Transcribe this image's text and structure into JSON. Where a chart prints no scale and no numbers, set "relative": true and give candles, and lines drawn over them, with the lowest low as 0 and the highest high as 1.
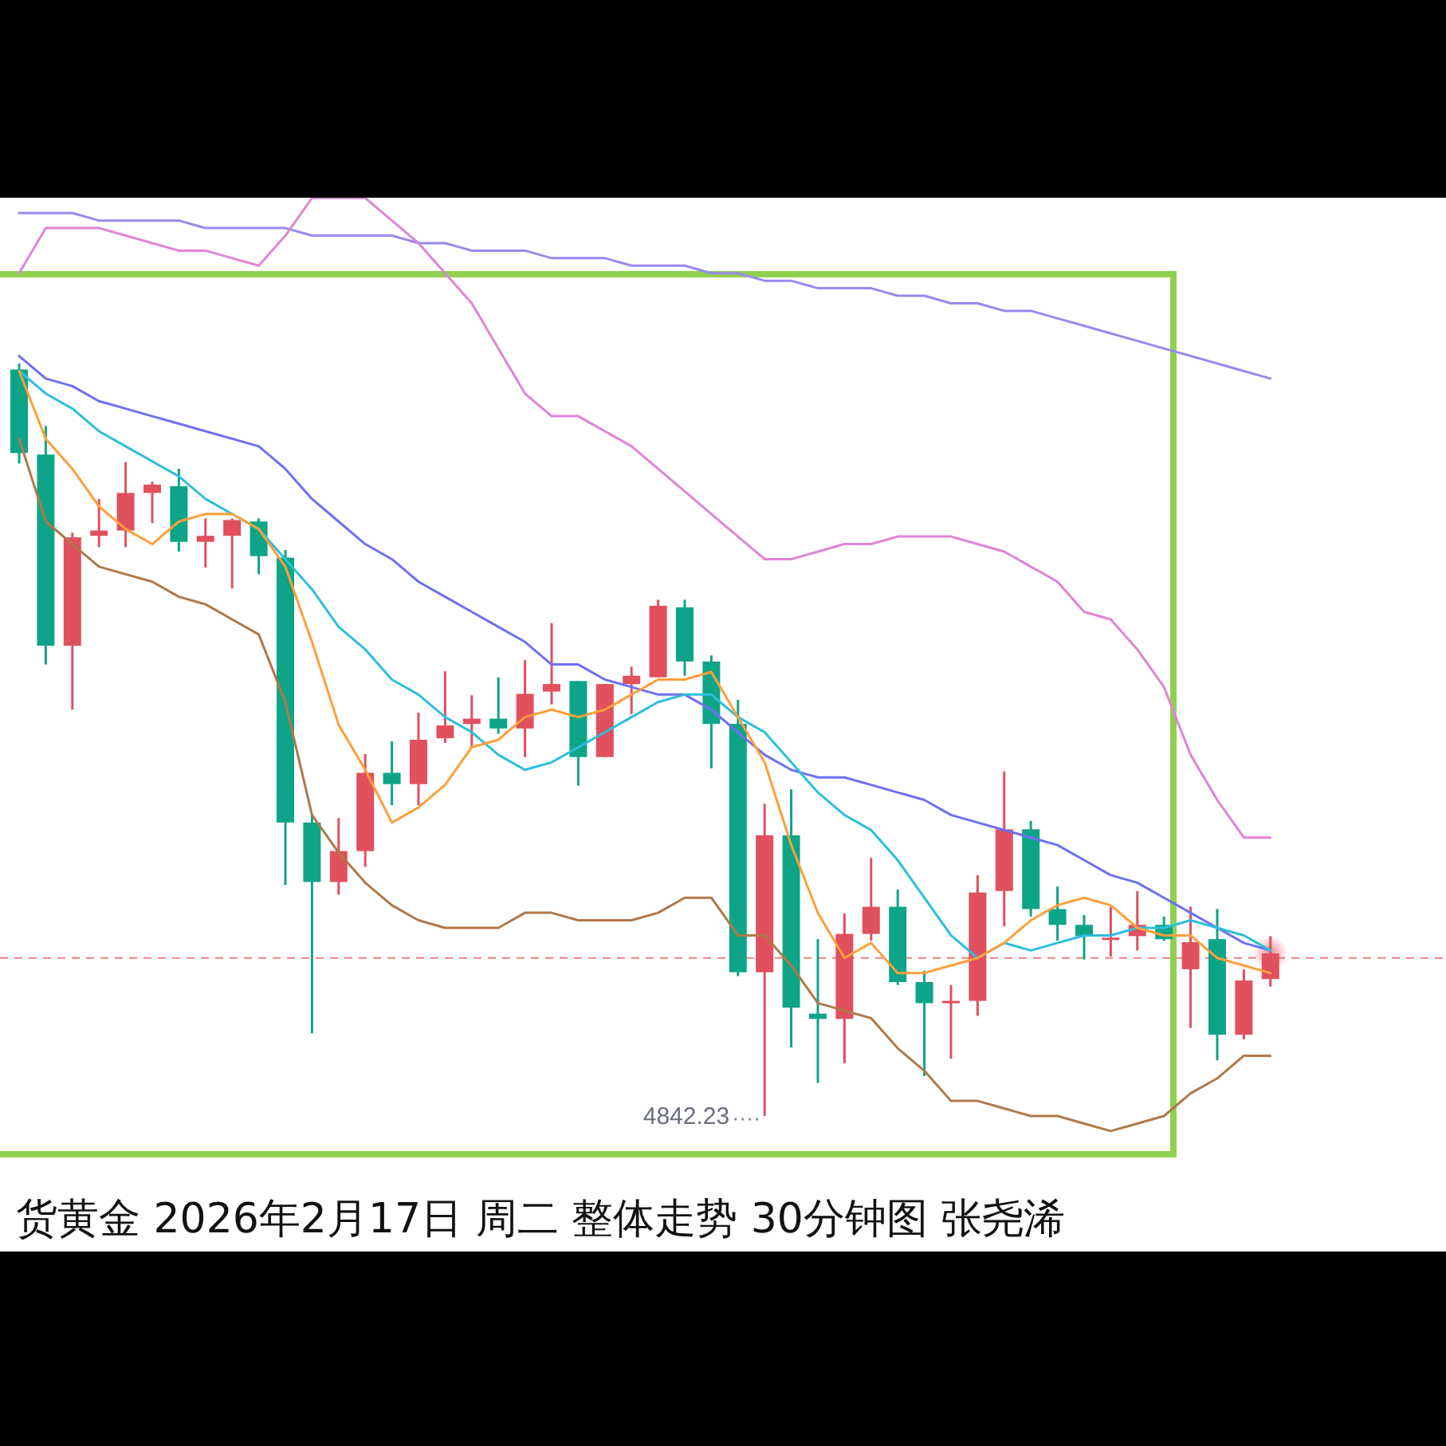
{
  "chart_data": {
    "type": "candlestick",
    "title": "货黄金 2026年2月17日 周二 整体走势 30分钟图 张尧浠",
    "relative": true,
    "categories": [
      null,
      null,
      null,
      null,
      null,
      null,
      null,
      null,
      null,
      null,
      null,
      null,
      null,
      null,
      null,
      null,
      null,
      null,
      null,
      null,
      null,
      null,
      null,
      null,
      null,
      null,
      null,
      null,
      null,
      null,
      null,
      null,
      null,
      null,
      null,
      null,
      null,
      null,
      null,
      null,
      null,
      null,
      null,
      null,
      null,
      null,
      null,
      null
    ],
    "ohlc": [
      [
        0.992,
        1.0,
        0.867,
        0.881
      ],
      [
        0.879,
        0.917,
        0.6,
        0.625
      ],
      [
        0.625,
        0.775,
        0.54,
        0.769
      ],
      [
        0.771,
        0.82,
        0.756,
        0.778
      ],
      [
        0.778,
        0.869,
        0.756,
        0.828
      ],
      [
        0.828,
        0.843,
        0.788,
        0.839
      ],
      [
        0.837,
        0.86,
        0.75,
        0.763
      ],
      [
        0.763,
        0.794,
        0.729,
        0.771
      ],
      [
        0.771,
        0.794,
        0.701,
        0.792
      ],
      [
        0.79,
        0.794,
        0.72,
        0.744
      ],
      [
        0.742,
        0.752,
        0.307,
        0.39
      ],
      [
        0.39,
        0.4,
        0.11,
        0.311
      ],
      [
        0.311,
        0.396,
        0.294,
        0.352
      ],
      [
        0.352,
        0.481,
        0.331,
        0.456
      ],
      [
        0.456,
        0.498,
        0.413,
        0.441
      ],
      [
        0.441,
        0.536,
        0.413,
        0.5
      ],
      [
        0.502,
        0.591,
        0.496,
        0.519
      ],
      [
        0.521,
        0.559,
        0.489,
        0.528
      ],
      [
        0.528,
        0.583,
        0.508,
        0.515
      ],
      [
        0.515,
        0.606,
        0.477,
        0.561
      ],
      [
        0.564,
        0.655,
        0.547,
        0.574
      ],
      [
        0.578,
        0.578,
        0.439,
        0.477
      ],
      [
        0.477,
        0.574,
        0.477,
        0.574
      ],
      [
        0.574,
        0.597,
        0.534,
        0.585
      ],
      [
        0.583,
        0.686,
        0.583,
        0.678
      ],
      [
        0.676,
        0.686,
        0.585,
        0.604
      ],
      [
        0.604,
        0.612,
        0.462,
        0.521
      ],
      [
        0.521,
        0.553,
        0.186,
        0.191
      ],
      [
        0.191,
        0.415,
        0.0,
        0.373
      ],
      [
        0.373,
        0.434,
        0.091,
        0.144
      ],
      [
        0.136,
        0.235,
        0.044,
        0.129
      ],
      [
        0.129,
        0.269,
        0.07,
        0.242
      ],
      [
        0.242,
        0.343,
        0.233,
        0.278
      ],
      [
        0.278,
        0.301,
        0.174,
        0.178
      ],
      [
        0.178,
        0.193,
        0.053,
        0.15
      ],
      [
        0.15,
        0.174,
        0.076,
        0.153
      ],
      [
        0.153,
        0.32,
        0.133,
        0.297
      ],
      [
        0.299,
        0.458,
        0.252,
        0.381
      ],
      [
        0.381,
        0.392,
        0.265,
        0.275
      ],
      [
        0.275,
        0.305,
        0.233,
        0.254
      ],
      [
        0.254,
        0.267,
        0.208,
        0.239
      ],
      [
        0.235,
        0.278,
        0.212,
        0.237
      ],
      [
        0.239,
        0.299,
        0.22,
        0.254
      ],
      [
        0.254,
        0.265,
        0.233,
        0.235
      ],
      [
        0.195,
        0.278,
        0.117,
        0.231
      ],
      [
        0.235,
        0.275,
        0.074,
        0.108
      ],
      [
        0.108,
        0.195,
        0.102,
        0.18
      ],
      [
        0.182,
        0.239,
        0.172,
        0.216
      ]
    ],
    "colors": [
      "#0ea487",
      "#0ea487",
      "#e0505e",
      "#e0505e",
      "#e0505e",
      "#e0505e",
      "#0ea487",
      "#e0505e",
      "#e0505e",
      "#0ea487",
      "#0ea487",
      "#0ea487",
      "#e0505e",
      "#e0505e",
      "#0ea487",
      "#e0505e",
      "#e0505e",
      "#e0505e",
      "#0ea487",
      "#e0505e",
      "#e0505e",
      "#0ea487",
      "#e0505e",
      "#e0505e",
      "#e0505e",
      "#0ea487",
      "#0ea487",
      "#0ea487",
      "#e0505e",
      "#0ea487",
      "#0ea487",
      "#e0505e",
      "#e0505e",
      "#0ea487",
      "#0ea487",
      "#e0505e",
      "#e0505e",
      "#e0505e",
      "#0ea487",
      "#0ea487",
      "#0ea487",
      "#e0505e",
      "#e0505e",
      "#0ea487",
      "#e0505e",
      "#0ea487",
      "#e0505e",
      "#e0505e"
    ],
    "series": [
      {
        "type": "line",
        "color": "#9b88ee",
        "values": [
          1.2,
          1.2,
          1.2,
          1.19,
          1.19,
          1.19,
          1.19,
          1.18,
          1.18,
          1.18,
          1.18,
          1.17,
          1.17,
          1.17,
          1.17,
          1.16,
          1.16,
          1.15,
          1.15,
          1.15,
          1.14,
          1.14,
          1.14,
          1.13,
          1.13,
          1.13,
          1.12,
          1.12,
          1.11,
          1.11,
          1.1,
          1.1,
          1.1,
          1.09,
          1.09,
          1.08,
          1.08,
          1.07,
          1.07,
          1.06,
          1.05,
          1.04,
          1.03,
          1.02,
          1.01,
          1.0,
          0.99,
          0.98
        ]
      },
      {
        "type": "line",
        "color": "#e084d8",
        "values": [
          1.12,
          1.18,
          1.18,
          1.18,
          1.17,
          1.16,
          1.15,
          1.15,
          1.14,
          1.13,
          1.17,
          1.22,
          1.22,
          1.22,
          1.19,
          1.16,
          1.12,
          1.08,
          1.02,
          0.96,
          0.93,
          0.93,
          0.91,
          0.89,
          0.86,
          0.83,
          0.8,
          0.77,
          0.74,
          0.74,
          0.75,
          0.76,
          0.76,
          0.77,
          0.77,
          0.77,
          0.76,
          0.75,
          0.73,
          0.71,
          0.67,
          0.66,
          0.62,
          0.57,
          0.48,
          0.42,
          0.37,
          0.37
        ]
      },
      {
        "type": "line",
        "color": "#6f6ff2",
        "values": [
          1.01,
          0.98,
          0.97,
          0.95,
          0.94,
          0.93,
          0.92,
          0.91,
          0.9,
          0.89,
          0.86,
          0.82,
          0.79,
          0.76,
          0.74,
          0.71,
          0.69,
          0.67,
          0.65,
          0.63,
          0.6,
          0.6,
          0.58,
          0.57,
          0.56,
          0.56,
          0.54,
          0.51,
          0.48,
          0.46,
          0.45,
          0.45,
          0.44,
          0.43,
          0.42,
          0.4,
          0.39,
          0.38,
          0.37,
          0.36,
          0.34,
          0.32,
          0.31,
          0.29,
          0.27,
          0.25,
          0.23,
          0.22
        ]
      },
      {
        "type": "line",
        "color": "#2bbfdc",
        "values": [
          0.99,
          0.96,
          0.94,
          0.91,
          0.89,
          0.87,
          0.85,
          0.82,
          0.8,
          0.78,
          0.74,
          0.7,
          0.65,
          0.62,
          0.58,
          0.56,
          0.53,
          0.51,
          0.48,
          0.46,
          0.47,
          0.49,
          0.51,
          0.53,
          0.55,
          0.56,
          0.56,
          0.53,
          0.51,
          0.47,
          0.43,
          0.4,
          0.38,
          0.34,
          0.29,
          0.24,
          0.21,
          0.23,
          0.22,
          0.23,
          0.24,
          0.24,
          0.25,
          0.25,
          0.26,
          0.25,
          0.24,
          0.22
        ]
      },
      {
        "type": "line",
        "color": "#ff9f3a",
        "values": [
          0.99,
          0.9,
          0.86,
          0.81,
          0.78,
          0.76,
          0.79,
          0.8,
          0.8,
          0.78,
          0.73,
          0.63,
          0.52,
          0.46,
          0.39,
          0.41,
          0.44,
          0.49,
          0.5,
          0.53,
          0.54,
          0.53,
          0.54,
          0.56,
          0.58,
          0.58,
          0.59,
          0.53,
          0.47,
          0.36,
          0.27,
          0.21,
          0.23,
          0.19,
          0.19,
          0.2,
          0.21,
          0.23,
          0.26,
          0.28,
          0.29,
          0.28,
          0.25,
          0.24,
          0.24,
          0.21,
          0.2,
          0.19
        ]
      },
      {
        "type": "line",
        "color": "#b07849",
        "values": [
          0.9,
          0.79,
          0.76,
          0.73,
          0.72,
          0.71,
          0.69,
          0.68,
          0.66,
          0.64,
          0.55,
          0.4,
          0.35,
          0.31,
          0.28,
          0.26,
          0.25,
          0.25,
          0.25,
          0.27,
          0.27,
          0.26,
          0.26,
          0.26,
          0.27,
          0.29,
          0.29,
          0.24,
          0.24,
          0.2,
          0.15,
          0.14,
          0.13,
          0.09,
          0.06,
          0.02,
          0.02,
          0.01,
          0.0,
          0.0,
          -0.01,
          -0.02,
          -0.01,
          0.0,
          0.03,
          0.05,
          0.08,
          0.08
        ]
      }
    ],
    "ref_lines": [
      {
        "axis": "y",
        "value": 0.21,
        "color": "#f08080",
        "line_style": "dashed"
      }
    ],
    "annotations": [
      "4842.23"
    ]
  }
}
